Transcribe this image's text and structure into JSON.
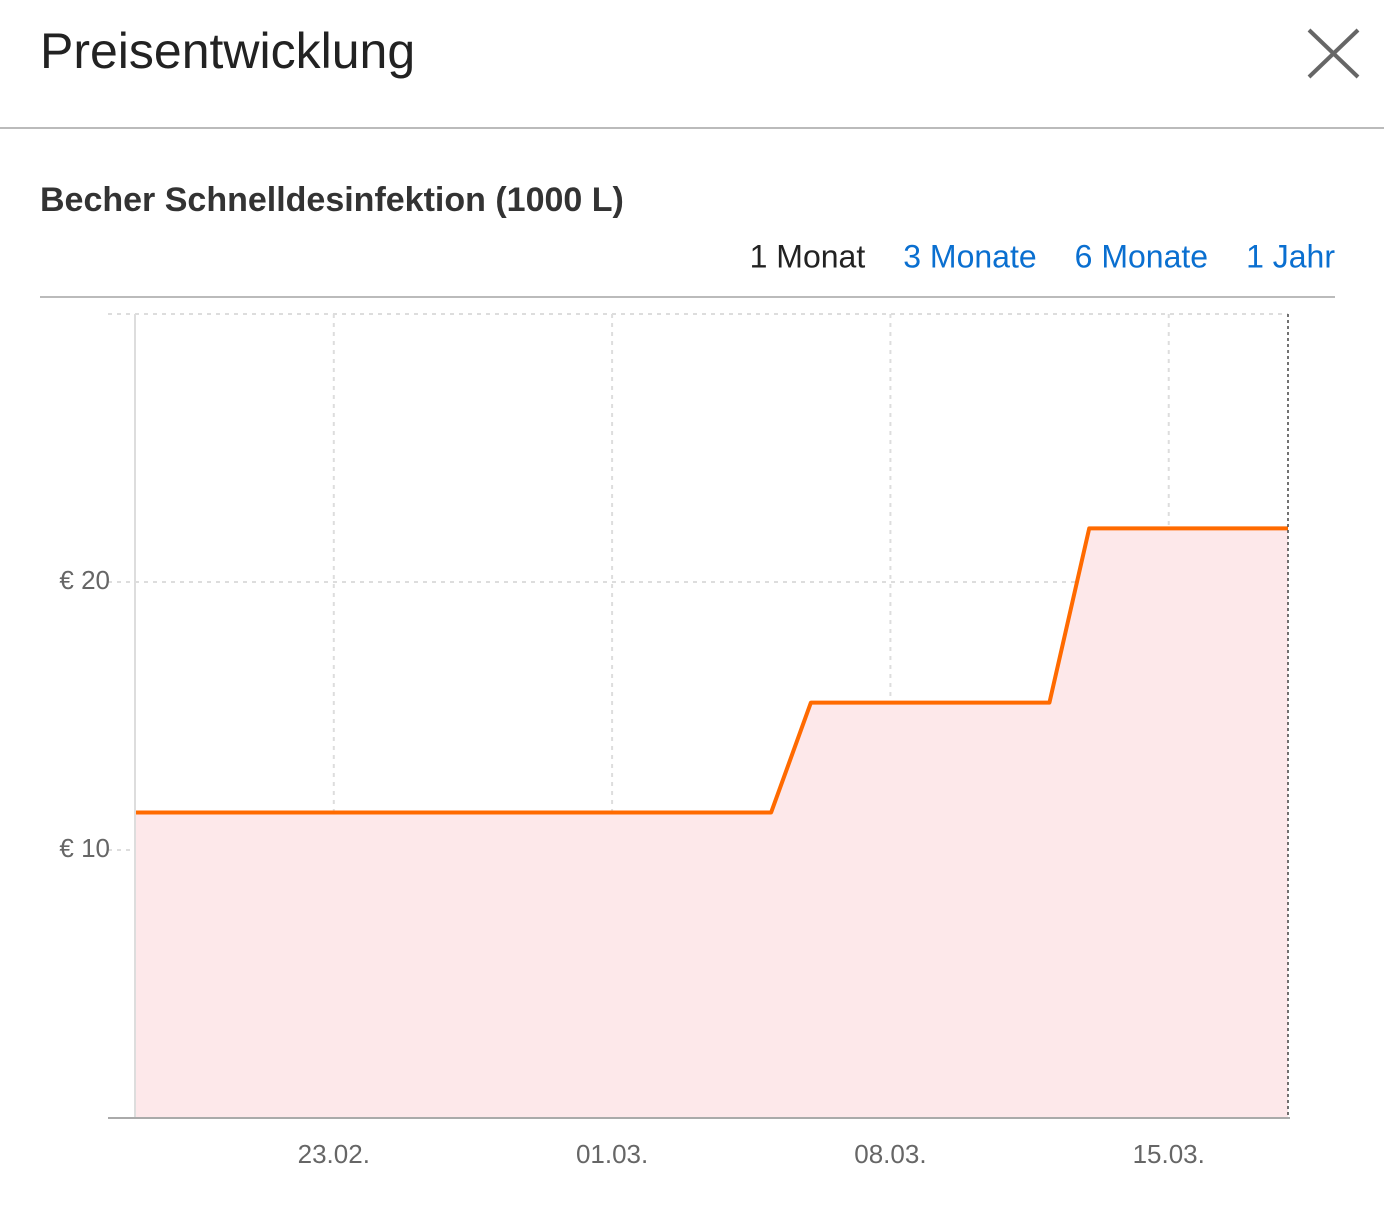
{
  "header": {
    "title": "Preisentwicklung"
  },
  "product": "Becher Schnelldesinfektion (1000 L)",
  "ranges": [
    {
      "label": "1 Monat",
      "active": true
    },
    {
      "label": "3 Monate",
      "active": false
    },
    {
      "label": "6 Monate",
      "active": false
    },
    {
      "label": "1 Jahr",
      "active": false
    }
  ],
  "chart_data": {
    "type": "line",
    "x": [
      0,
      16,
      17,
      23,
      24,
      29
    ],
    "series": [
      {
        "color": "#ff6a00",
        "values": [
          11.4,
          11.4,
          15.5,
          15.5,
          22,
          22
        ]
      }
    ],
    "fill": "#fde8ea",
    "xlim": [
      0,
      29
    ],
    "xticks": [
      {
        "value": 5,
        "label": "23.02."
      },
      {
        "value": 12,
        "label": "01.03."
      },
      {
        "value": 19,
        "label": "08.03."
      },
      {
        "value": 26,
        "label": "15.03."
      }
    ],
    "ylim": [
      0,
      30
    ],
    "yticks": [
      {
        "value": 10,
        "label": "€ 10"
      },
      {
        "value": 20,
        "label": "€ 20"
      }
    ],
    "grid": true
  }
}
